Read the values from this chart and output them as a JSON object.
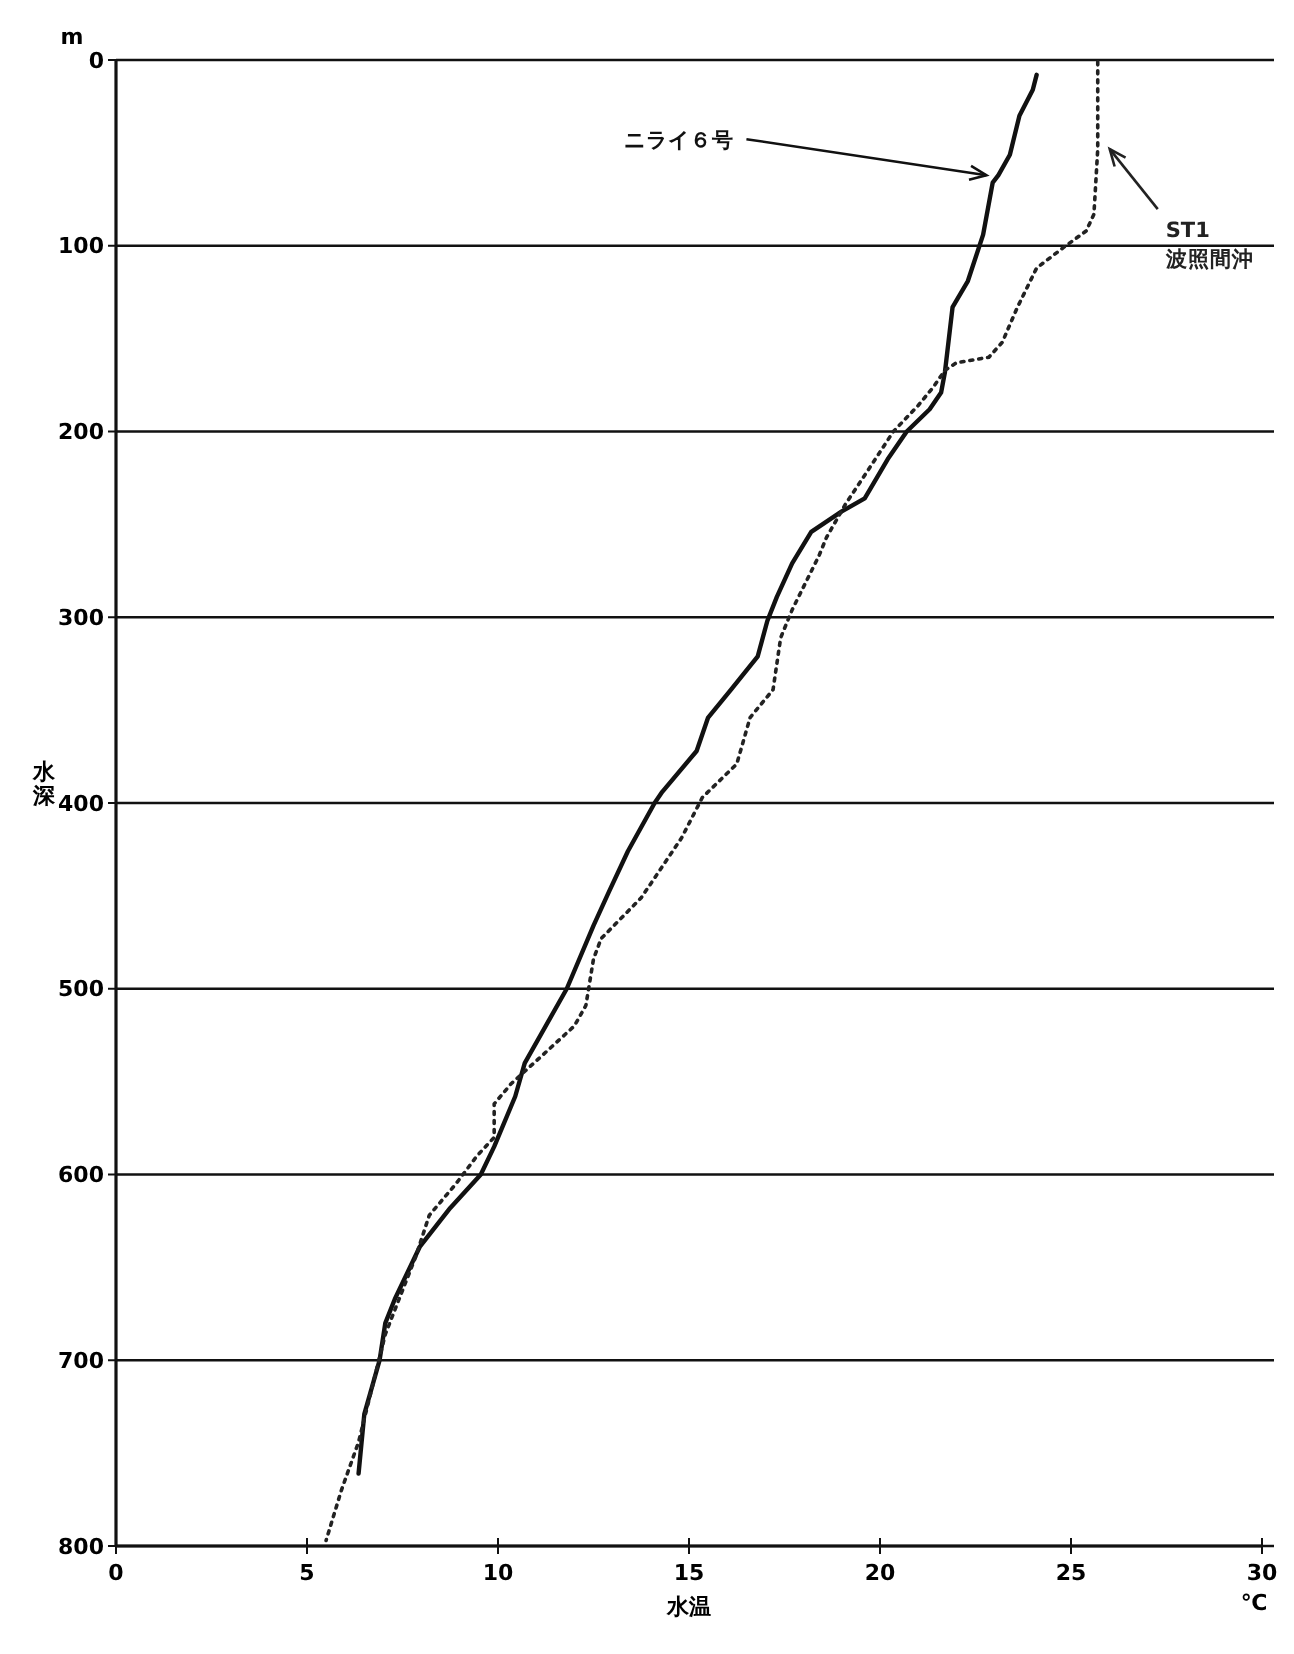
{
  "chart_data": {
    "type": "line",
    "xlabel": "水温",
    "ylabel": "水深",
    "xlim": [
      0,
      30
    ],
    "ylim": [
      800,
      0
    ],
    "xticks": [
      0,
      5,
      10,
      15,
      20,
      25,
      30
    ],
    "yticks": [
      0,
      100,
      200,
      300,
      400,
      500,
      600,
      700,
      800
    ],
    "grid": "y",
    "legend": false,
    "annotations": [
      "℃",
      "m"
    ],
    "series": [
      {
        "name": "ニライ６号",
        "color": "#111111",
        "line_style": "solid",
        "x": [
          24.1,
          24.0,
          23.65,
          23.4,
          23.1,
          22.95,
          22.7,
          22.3,
          21.9,
          21.7,
          21.6,
          21.3,
          20.7,
          20.2,
          19.6,
          19.0,
          18.2,
          17.7,
          17.3,
          17.05,
          16.8,
          16.1,
          15.5,
          15.2,
          14.3,
          14.1,
          13.4,
          12.9,
          12.5,
          11.8,
          10.7,
          10.45,
          9.9,
          9.55,
          8.75,
          7.95,
          7.3,
          7.05,
          6.9,
          6.5,
          6.35
        ],
        "values": [
          8,
          16,
          30,
          51,
          62,
          66,
          94,
          119,
          133,
          168,
          179,
          188,
          200,
          215,
          236,
          243,
          254,
          271,
          289,
          302,
          321,
          339,
          354,
          372,
          394,
          400,
          426,
          448,
          466,
          500,
          540,
          558,
          585,
          600,
          618,
          639,
          667,
          680,
          700,
          729,
          761
        ]
      },
      {
        "name": "ST1 波照間沖",
        "color": "#222222",
        "line_style": "dotted",
        "x": [
          25.7,
          25.7,
          25.6,
          25.4,
          24.8,
          24.1,
          23.6,
          23.2,
          22.85,
          22.0,
          21.7,
          21.4,
          21.0,
          20.35,
          19.65,
          19.1,
          18.6,
          18.4,
          17.7,
          17.4,
          17.2,
          16.6,
          16.25,
          15.35,
          14.8,
          13.75,
          12.7,
          12.5,
          12.3,
          12.0,
          11.1,
          10.35,
          9.9,
          9.9,
          9.45,
          8.9,
          8.2,
          7.85,
          7.05,
          6.7,
          6.35,
          5.9,
          5.5
        ],
        "values": [
          1,
          48,
          83,
          92,
          101,
          112,
          133,
          152,
          160,
          163,
          167,
          176,
          186,
          200,
          222,
          239,
          257,
          267,
          296,
          311,
          339,
          354,
          379,
          397,
          419,
          451,
          473,
          484,
          509,
          520,
          537,
          551,
          562,
          580,
          590,
          605,
          622,
          644,
          686,
          715,
          744,
          770,
          797
        ]
      }
    ]
  }
}
